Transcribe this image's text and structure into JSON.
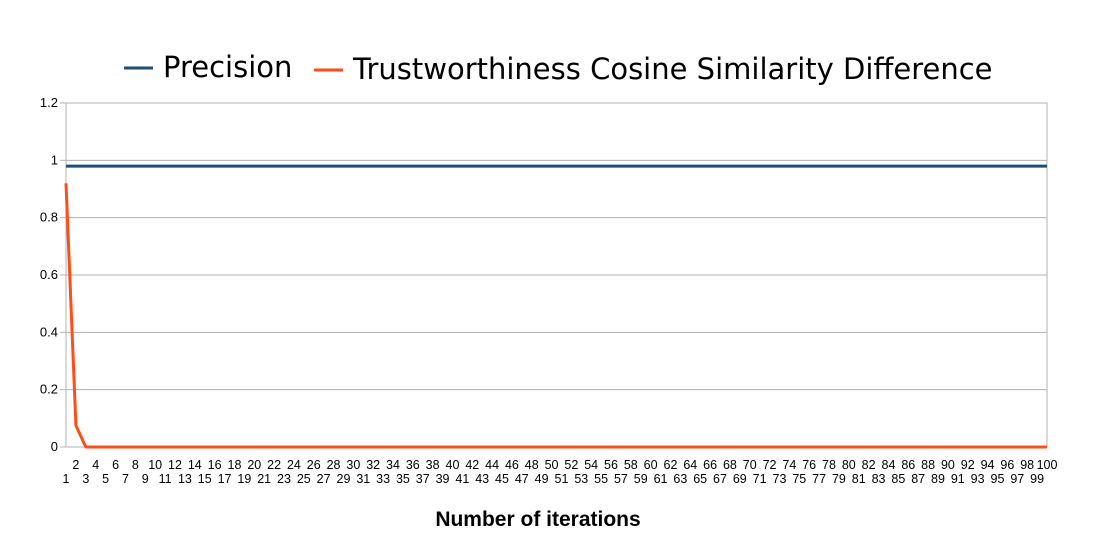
{
  "chart_data": {
    "type": "line",
    "title": "",
    "xlabel": "Number of iterations",
    "ylabel": "",
    "ylim": [
      0,
      1.2
    ],
    "yticks": [
      "0",
      "0.2",
      "0.4",
      "0.6",
      "0.8",
      "1",
      "1.2"
    ],
    "x_range": [
      1,
      100
    ],
    "legend_position": "top",
    "grid": true,
    "series": [
      {
        "name": "Precision",
        "color": "#1f4e79",
        "x": [
          1,
          100
        ],
        "y": [
          0.98,
          0.98
        ]
      },
      {
        "name": "Trustworthiness Cosine Similarity Difference",
        "color": "#ff4e1a",
        "x": [
          1,
          2,
          3,
          100
        ],
        "y": [
          0.92,
          0.075,
          0,
          0
        ]
      }
    ]
  }
}
